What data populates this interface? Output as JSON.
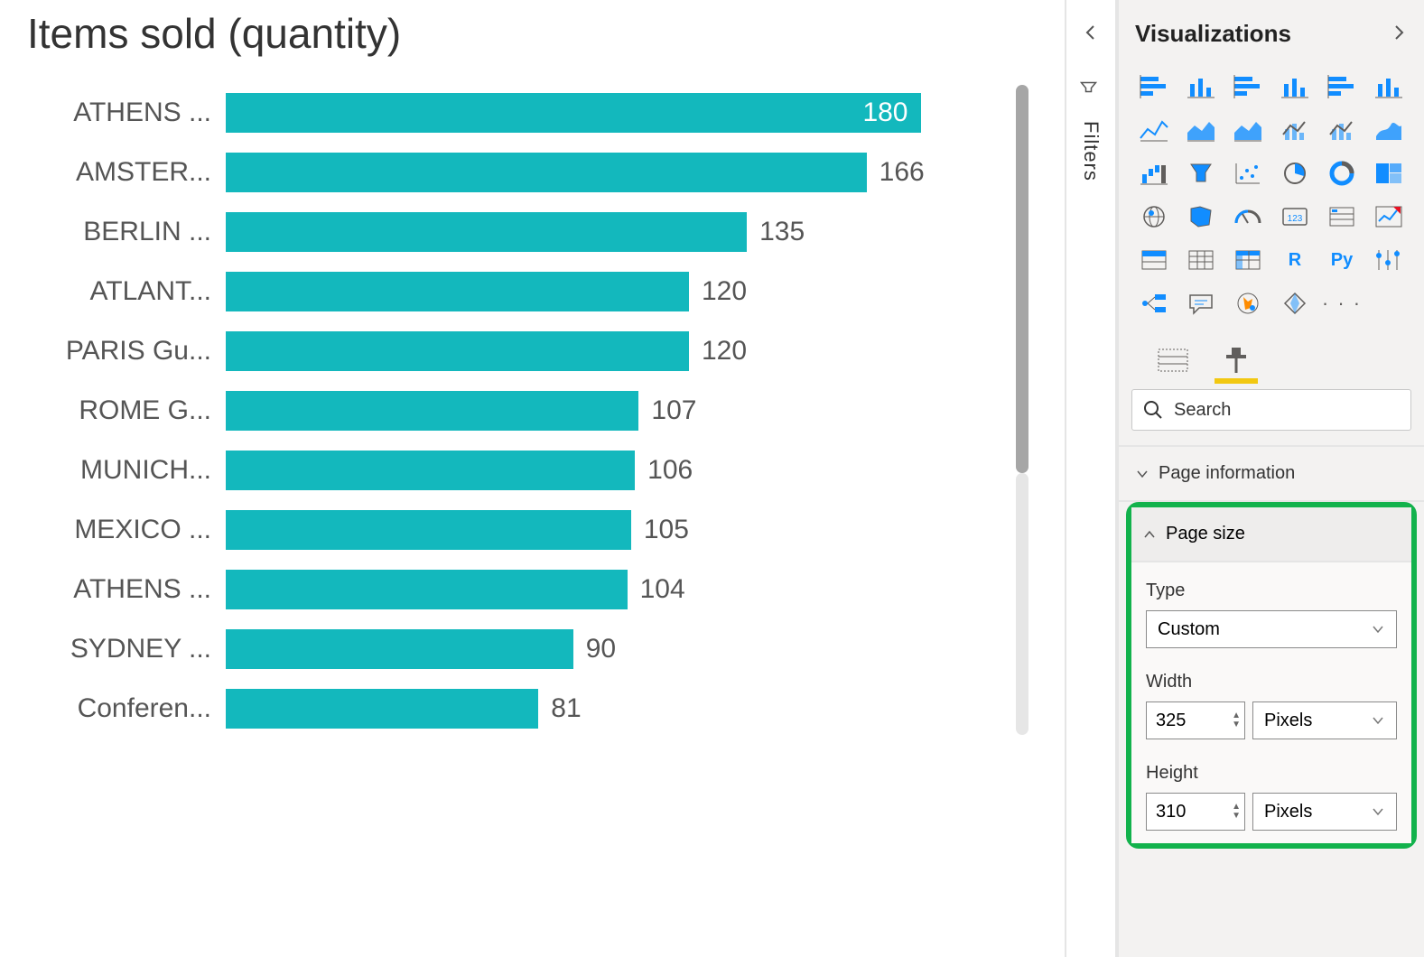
{
  "chart": {
    "title": "Items sold (quantity)",
    "type": "bar-horizontal",
    "bar_color": "#13b8bd",
    "label_color": "#555555",
    "value_color_inside": "#ffffff",
    "value_color_outside": "#555555",
    "max_value": 200,
    "rows": [
      {
        "label": "ATHENS ...",
        "value": 180,
        "value_inside": true
      },
      {
        "label": "AMSTER...",
        "value": 166,
        "value_inside": false
      },
      {
        "label": "BERLIN ...",
        "value": 135,
        "value_inside": false
      },
      {
        "label": "ATLANT...",
        "value": 120,
        "value_inside": false
      },
      {
        "label": "PARIS Gu...",
        "value": 120,
        "value_inside": false
      },
      {
        "label": "ROME G...",
        "value": 107,
        "value_inside": false
      },
      {
        "label": "MUNICH...",
        "value": 106,
        "value_inside": false
      },
      {
        "label": "MEXICO ...",
        "value": 105,
        "value_inside": false
      },
      {
        "label": "ATHENS ...",
        "value": 104,
        "value_inside": false
      },
      {
        "label": "SYDNEY ...",
        "value": 90,
        "value_inside": false
      },
      {
        "label": "Conferen...",
        "value": 81,
        "value_inside": false
      }
    ],
    "title_fontsize": 46,
    "label_fontsize": 30,
    "scrollbar_thumb_color": "#a6a6a6",
    "scrollbar_track_color": "#e6e6e6"
  },
  "filters_tab": {
    "label": "Filters"
  },
  "viz_panel": {
    "title": "Visualizations",
    "icon_tint": "#118dff",
    "icon_stroke": "#605e5c",
    "icons": [
      "stacked-bar",
      "clustered-column",
      "clustered-bar",
      "stacked-column",
      "stacked-bar-100",
      "stacked-column-100",
      "line",
      "area",
      "stacked-area",
      "line-clustered",
      "line-stacked",
      "ribbon",
      "waterfall",
      "funnel",
      "scatter",
      "pie",
      "donut",
      "treemap",
      "map-globe",
      "filled-map",
      "gauge",
      "card",
      "multi-row-card",
      "kpi",
      "slicer",
      "table",
      "matrix",
      "r-visual",
      "py-visual",
      "key-influencers",
      "decomposition-tree",
      "qa",
      "arcgis",
      "power-apps",
      "more"
    ],
    "r_label": "R",
    "py_label": "Py",
    "more_label": "· · ·"
  },
  "toolbar": {
    "fields_tab": "fields",
    "format_tab": "format"
  },
  "search": {
    "placeholder": "Search"
  },
  "sections": {
    "page_info": "Page information",
    "page_size": {
      "title": "Page size",
      "type_label": "Type",
      "type_value": "Custom",
      "width_label": "Width",
      "width_value": "325",
      "width_unit": "Pixels",
      "height_label": "Height",
      "height_value": "310",
      "height_unit": "Pixels"
    }
  },
  "colors": {
    "highlight_border": "#12b24c",
    "active_underline": "#f2c811",
    "panel_bg": "#f3f2f1"
  }
}
